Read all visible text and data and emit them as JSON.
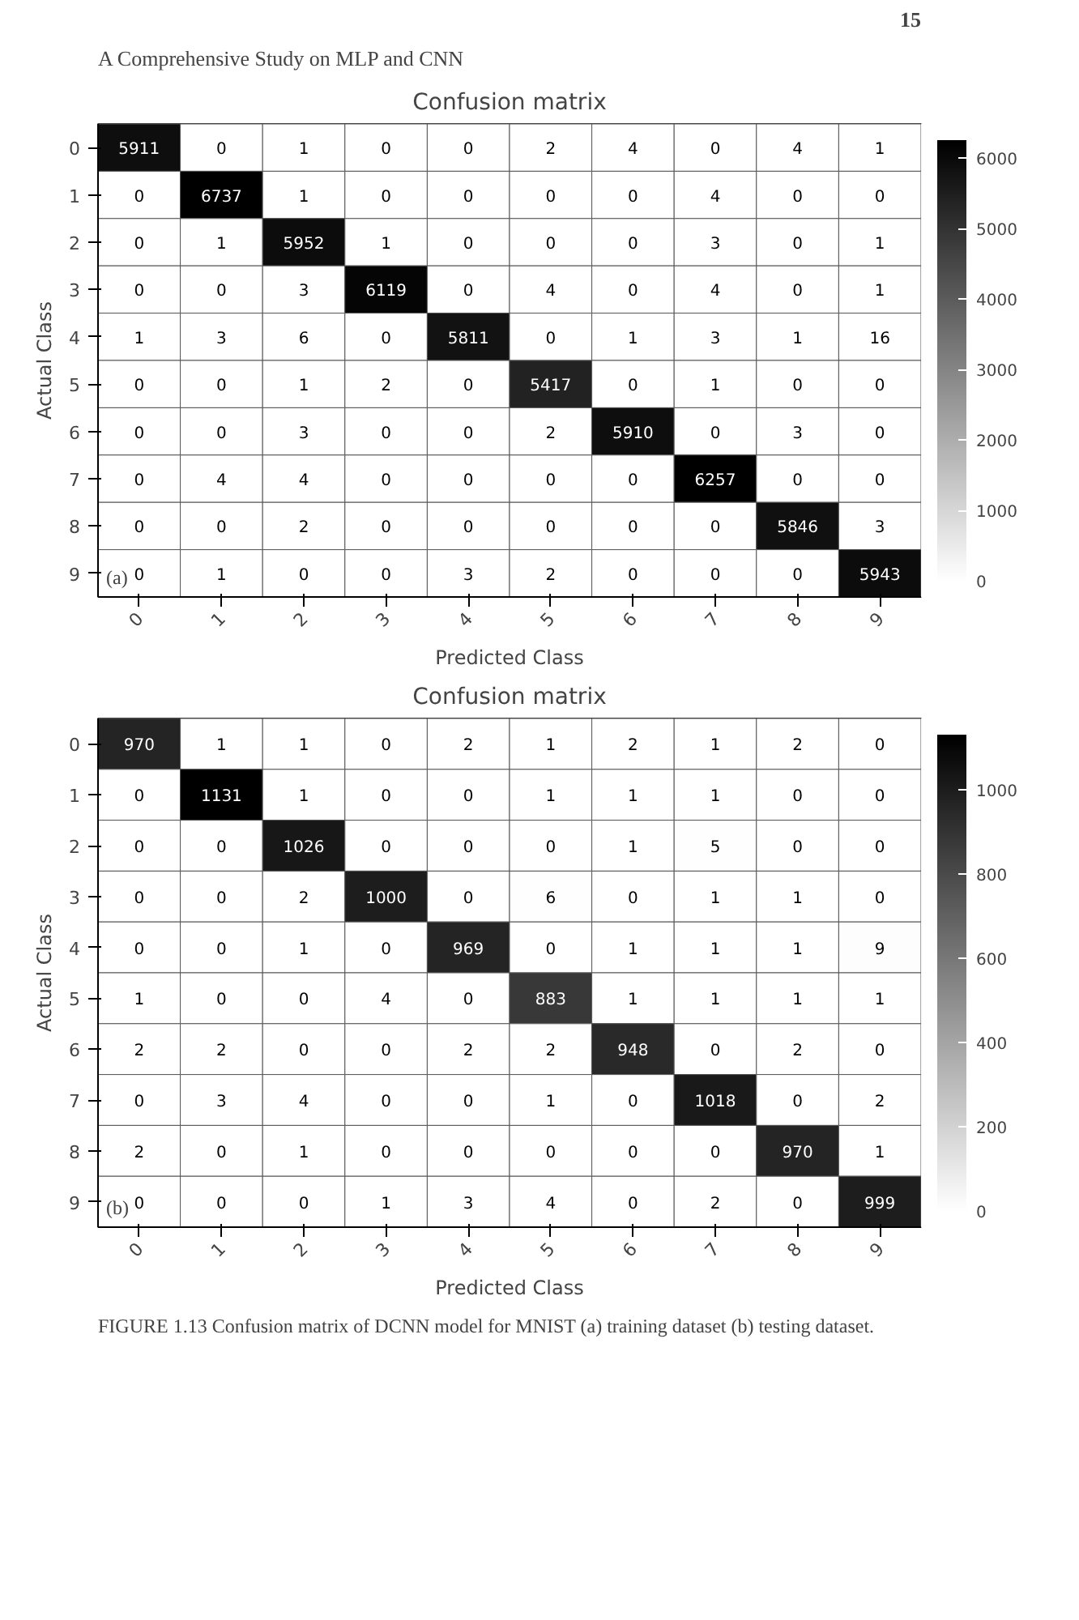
{
  "chart_data": [
    {
      "type": "heatmap",
      "title": "Confusion matrix",
      "xlabel": "Predicted Class",
      "ylabel": "Actual Class",
      "annotations": [
        "A Comprehensive Study on MLP and CNN",
        "15",
        "(a)"
      ],
      "categories": [
        "0",
        "1",
        "2",
        "3",
        "4",
        "5",
        "6",
        "7",
        "8",
        "9"
      ],
      "y_categories": [
        "0",
        "1",
        "2",
        "3",
        "4",
        "5",
        "6",
        "7",
        "8",
        "9"
      ],
      "cells": [
        [
          5911,
          0,
          1,
          0,
          0,
          2,
          4,
          0,
          4,
          1
        ],
        [
          0,
          6737,
          1,
          0,
          0,
          0,
          0,
          4,
          0,
          0
        ],
        [
          0,
          1,
          5952,
          1,
          0,
          0,
          0,
          3,
          0,
          1
        ],
        [
          0,
          0,
          3,
          6119,
          0,
          4,
          0,
          4,
          0,
          1
        ],
        [
          1,
          3,
          6,
          0,
          5811,
          0,
          1,
          3,
          1,
          16
        ],
        [
          0,
          0,
          1,
          2,
          0,
          5417,
          0,
          1,
          0,
          0
        ],
        [
          0,
          0,
          3,
          0,
          0,
          2,
          5910,
          0,
          3,
          0
        ],
        [
          0,
          4,
          4,
          0,
          0,
          0,
          0,
          6257,
          0,
          0
        ],
        [
          0,
          0,
          2,
          0,
          0,
          0,
          0,
          0,
          5846,
          3
        ],
        [
          0,
          1,
          0,
          0,
          3,
          2,
          0,
          0,
          0,
          5943
        ]
      ],
      "clim": [
        0,
        6257
      ],
      "cticks": [
        0,
        1000,
        2000,
        3000,
        4000,
        5000,
        6000
      ],
      "data_labels": true
    },
    {
      "type": "heatmap",
      "title": "Confusion matrix",
      "xlabel": "Predicted Class",
      "ylabel": "Actual Class",
      "annotations": [
        "(b)",
        "FIGURE 1.13 Confusion matrix of DCNN model for MNIST (a) training dataset (b) testing dataset."
      ],
      "categories": [
        "0",
        "1",
        "2",
        "3",
        "4",
        "5",
        "6",
        "7",
        "8",
        "9"
      ],
      "y_categories": [
        "0",
        "1",
        "2",
        "3",
        "4",
        "5",
        "6",
        "7",
        "8",
        "9"
      ],
      "cells": [
        [
          970,
          1,
          1,
          0,
          2,
          1,
          2,
          1,
          2,
          0
        ],
        [
          0,
          1131,
          1,
          0,
          0,
          1,
          1,
          1,
          0,
          0
        ],
        [
          0,
          0,
          1026,
          0,
          0,
          0,
          1,
          5,
          0,
          0
        ],
        [
          0,
          0,
          2,
          1000,
          0,
          6,
          0,
          1,
          1,
          0
        ],
        [
          0,
          0,
          1,
          0,
          969,
          0,
          1,
          1,
          1,
          9
        ],
        [
          1,
          0,
          0,
          4,
          0,
          883,
          1,
          1,
          1,
          1
        ],
        [
          2,
          2,
          0,
          0,
          2,
          2,
          948,
          0,
          2,
          0
        ],
        [
          0,
          3,
          4,
          0,
          0,
          1,
          0,
          1018,
          0,
          2
        ],
        [
          2,
          0,
          1,
          0,
          0,
          0,
          0,
          0,
          970,
          1
        ],
        [
          0,
          0,
          0,
          1,
          3,
          4,
          0,
          2,
          0,
          999
        ]
      ],
      "clim": [
        0,
        1131
      ],
      "cticks": [
        0,
        200,
        400,
        600,
        800,
        1000
      ],
      "data_labels": true
    }
  ]
}
